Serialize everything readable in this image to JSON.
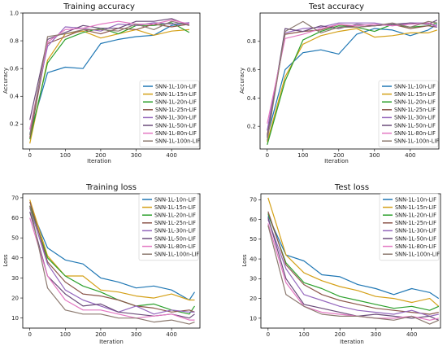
{
  "legend_labels": [
    "SNN-1L-10n-LIF",
    "SNN-1L-15n-LIF",
    "SNN-1L-20n-LIF",
    "SNN-1L-25n-LIF",
    "SNN-1L-30n-LIF",
    "SNN-1L-50n-LIF",
    "SNN-1L-80n-LIF",
    "SNN-1L-100n-LIF"
  ],
  "series_colors": [
    "#1f77b4",
    "#d4a017",
    "#2ca02c",
    "#8c564b",
    "#9467bd",
    "#6b4c7a",
    "#e377c2",
    "#8c7a70"
  ],
  "chart_data": [
    {
      "type": "line",
      "title": "Training accuracy",
      "xlabel": "Iteration",
      "ylabel": "Accuracy",
      "xlim": [
        -20,
        480
      ],
      "ylim": [
        0.02,
        1.0
      ],
      "xticks": [
        0,
        100,
        200,
        300,
        400
      ],
      "yticks": [
        0.2,
        0.4,
        0.6,
        0.8,
        1.0
      ],
      "ytick_labels": [
        "0.2",
        "0.4",
        "0.6",
        "0.8",
        "1.0"
      ],
      "legend_position": "lower-right",
      "x": [
        0,
        50,
        100,
        150,
        200,
        250,
        300,
        350,
        400,
        450
      ],
      "series": [
        {
          "name": "SNN-1L-10n-LIF",
          "values": [
            0.13,
            0.57,
            0.61,
            0.6,
            0.78,
            0.81,
            0.83,
            0.84,
            0.91,
            0.93
          ]
        },
        {
          "name": "SNN-1L-15n-LIF",
          "values": [
            0.06,
            0.66,
            0.85,
            0.87,
            0.82,
            0.85,
            0.88,
            0.84,
            0.87,
            0.88
          ]
        },
        {
          "name": "SNN-1L-20n-LIF",
          "values": [
            0.09,
            0.64,
            0.81,
            0.86,
            0.89,
            0.85,
            0.91,
            0.91,
            0.93,
            0.86
          ]
        },
        {
          "name": "SNN-1L-25n-LIF",
          "values": [
            0.1,
            0.78,
            0.83,
            0.88,
            0.85,
            0.89,
            0.88,
            0.92,
            0.9,
            0.92
          ]
        },
        {
          "name": "SNN-1L-30n-LIF",
          "values": [
            0.16,
            0.76,
            0.9,
            0.89,
            0.87,
            0.92,
            0.91,
            0.93,
            0.92,
            0.93
          ]
        },
        {
          "name": "SNN-1L-50n-LIF",
          "values": [
            0.23,
            0.81,
            0.86,
            0.91,
            0.89,
            0.89,
            0.94,
            0.94,
            0.96,
            0.91
          ]
        },
        {
          "name": "SNN-1L-80n-LIF",
          "values": [
            0.16,
            0.79,
            0.88,
            0.89,
            0.92,
            0.94,
            0.92,
            0.92,
            0.95,
            0.92
          ]
        },
        {
          "name": "SNN-1L-100n-LIF",
          "values": [
            0.12,
            0.83,
            0.85,
            0.88,
            0.88,
            0.87,
            0.92,
            0.88,
            0.94,
            0.91
          ]
        }
      ]
    },
    {
      "type": "line",
      "title": "Test accuracy",
      "xlabel": "Iteration",
      "ylabel": "Accuracy",
      "xlim": [
        -20,
        480
      ],
      "ylim": [
        0.04,
        1.0
      ],
      "xticks": [
        0,
        100,
        200,
        300,
        400
      ],
      "yticks": [
        0.2,
        0.4,
        0.6,
        0.8
      ],
      "ytick_labels": [
        "0.2",
        "0.4",
        "0.6",
        "0.8"
      ],
      "legend_position": "lower-right",
      "x": [
        0,
        50,
        100,
        150,
        200,
        250,
        300,
        350,
        400,
        450,
        475
      ],
      "series": [
        {
          "name": "SNN-1L-10n-LIF",
          "values": [
            0.13,
            0.6,
            0.72,
            0.74,
            0.71,
            0.85,
            0.89,
            0.88,
            0.84,
            0.88,
            0.92
          ]
        },
        {
          "name": "SNN-1L-15n-LIF",
          "values": [
            0.09,
            0.55,
            0.78,
            0.84,
            0.87,
            0.89,
            0.83,
            0.84,
            0.86,
            0.86,
            0.88
          ]
        },
        {
          "name": "SNN-1L-20n-LIF",
          "values": [
            0.07,
            0.52,
            0.81,
            0.87,
            0.91,
            0.9,
            0.87,
            0.92,
            0.9,
            0.91,
            0.93
          ]
        },
        {
          "name": "SNN-1L-25n-LIF",
          "values": [
            0.14,
            0.85,
            0.87,
            0.88,
            0.92,
            0.9,
            0.91,
            0.92,
            0.89,
            0.91,
            0.9
          ]
        },
        {
          "name": "SNN-1L-30n-LIF",
          "values": [
            0.17,
            0.86,
            0.89,
            0.9,
            0.93,
            0.93,
            0.93,
            0.91,
            0.93,
            0.93,
            0.9
          ]
        },
        {
          "name": "SNN-1L-50n-LIF",
          "values": [
            0.12,
            0.89,
            0.87,
            0.91,
            0.89,
            0.92,
            0.91,
            0.92,
            0.93,
            0.92,
            0.95
          ]
        },
        {
          "name": "SNN-1L-80n-LIF",
          "values": [
            0.22,
            0.82,
            0.85,
            0.89,
            0.92,
            0.91,
            0.92,
            0.91,
            0.92,
            0.93,
            0.91
          ]
        },
        {
          "name": "SNN-1L-100n-LIF",
          "values": [
            0.1,
            0.87,
            0.94,
            0.86,
            0.9,
            0.9,
            0.91,
            0.93,
            0.9,
            0.94,
            0.93
          ]
        }
      ]
    },
    {
      "type": "line",
      "title": "Training loss",
      "xlabel": "Iteration",
      "ylabel": "Loss",
      "xlim": [
        -20,
        480
      ],
      "ylim": [
        5,
        72
      ],
      "xticks": [
        0,
        100,
        200,
        300,
        400
      ],
      "yticks": [
        10,
        20,
        30,
        40,
        50,
        60,
        70
      ],
      "ytick_labels": [
        "10",
        "20",
        "30",
        "40",
        "50",
        "60",
        "70"
      ],
      "legend_position": "upper-right",
      "x": [
        0,
        50,
        100,
        150,
        200,
        250,
        300,
        350,
        400,
        450,
        465
      ],
      "series": [
        {
          "name": "SNN-1L-10n-LIF",
          "values": [
            66,
            45,
            39,
            37,
            30,
            28,
            25,
            26,
            24,
            19,
            23
          ]
        },
        {
          "name": "SNN-1L-15n-LIF",
          "values": [
            69,
            41,
            31,
            31,
            24,
            23,
            21,
            20,
            22,
            19,
            19
          ]
        },
        {
          "name": "SNN-1L-20n-LIF",
          "values": [
            66,
            40,
            31,
            26,
            23,
            19,
            16,
            17,
            14,
            12,
            16
          ]
        },
        {
          "name": "SNN-1L-25n-LIF",
          "values": [
            68,
            38,
            28,
            22,
            21,
            19,
            16,
            15,
            13,
            14,
            13
          ]
        },
        {
          "name": "SNN-1L-30n-LIF",
          "values": [
            65,
            37,
            24,
            19,
            16,
            13,
            16,
            12,
            14,
            13,
            13
          ]
        },
        {
          "name": "SNN-1L-50n-LIF",
          "values": [
            63,
            31,
            22,
            16,
            17,
            13,
            12,
            11,
            12,
            10,
            12
          ]
        },
        {
          "name": "SNN-1L-80n-LIF",
          "values": [
            60,
            31,
            19,
            14,
            14,
            12,
            10,
            11,
            12,
            9,
            9
          ]
        },
        {
          "name": "SNN-1L-100n-LIF",
          "values": [
            66,
            25,
            14,
            12,
            12,
            10,
            10,
            8,
            9,
            7,
            8
          ]
        }
      ]
    },
    {
      "type": "line",
      "title": "Test loss",
      "xlabel": "Iteration",
      "ylabel": "Loss",
      "xlim": [
        -20,
        480
      ],
      "ylim": [
        5,
        73
      ],
      "xticks": [
        0,
        100,
        200,
        300,
        400
      ],
      "yticks": [
        10,
        20,
        30,
        40,
        50,
        60,
        70
      ],
      "ytick_labels": [
        "10",
        "20",
        "30",
        "40",
        "50",
        "60",
        "70"
      ],
      "legend_position": "upper-right",
      "x": [
        0,
        50,
        100,
        150,
        200,
        250,
        300,
        350,
        400,
        450,
        475
      ],
      "series": [
        {
          "name": "SNN-1L-10n-LIF",
          "values": [
            62,
            42,
            39,
            32,
            31,
            27,
            25,
            22,
            25,
            23,
            20
          ]
        },
        {
          "name": "SNN-1L-15n-LIF",
          "values": [
            71,
            42,
            33,
            29,
            26,
            24,
            21,
            20,
            18,
            20,
            16
          ]
        },
        {
          "name": "SNN-1L-20n-LIF",
          "values": [
            63,
            38,
            28,
            25,
            21,
            19,
            17,
            15,
            16,
            14,
            16
          ]
        },
        {
          "name": "SNN-1L-25n-LIF",
          "values": [
            64,
            37,
            27,
            22,
            19,
            17,
            15,
            14,
            13,
            12,
            13
          ]
        },
        {
          "name": "SNN-1L-30n-LIF",
          "values": [
            60,
            35,
            22,
            19,
            16,
            14,
            13,
            12,
            14,
            11,
            12
          ]
        },
        {
          "name": "SNN-1L-50n-LIF",
          "values": [
            61,
            30,
            17,
            15,
            13,
            11,
            12,
            11,
            10,
            11,
            9
          ]
        },
        {
          "name": "SNN-1L-80n-LIF",
          "values": [
            58,
            28,
            16,
            13,
            12,
            11,
            10,
            10,
            11,
            9,
            10
          ]
        },
        {
          "name": "SNN-1L-100n-LIF",
          "values": [
            57,
            22,
            16,
            12,
            11,
            11,
            10,
            9,
            11,
            7,
            9
          ]
        }
      ]
    }
  ]
}
